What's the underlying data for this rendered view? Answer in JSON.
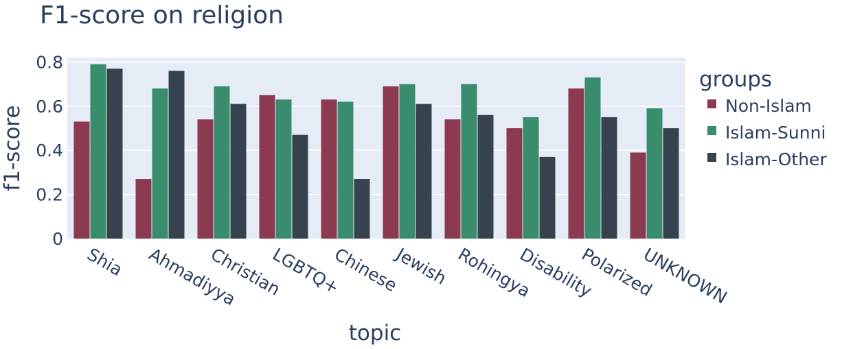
{
  "chart_data": {
    "type": "bar",
    "title": "F1-score on religion",
    "xlabel": "topic",
    "ylabel": "f1-score",
    "ylim": [
      0,
      0.82
    ],
    "yticks": [
      0,
      0.2,
      0.4,
      0.6,
      0.8
    ],
    "ytick_labels": [
      "0",
      "0.2",
      "0.4",
      "0.6",
      "0.8"
    ],
    "grid": true,
    "legend_title": "groups",
    "legend_position": "right",
    "categories": [
      "Shia",
      "Ahmadiyya",
      "Christian",
      "LGBTQ+",
      "Chinese",
      "Jewish",
      "Rohingya",
      "Disability",
      "Polarized",
      "UNKNOWN"
    ],
    "series": [
      {
        "name": "Non-Islam",
        "color": "#8b3a4f",
        "values": [
          0.53,
          0.27,
          0.54,
          0.65,
          0.63,
          0.69,
          0.54,
          0.5,
          0.68,
          0.39
        ]
      },
      {
        "name": "Islam-Sunni",
        "color": "#398c6c",
        "values": [
          0.79,
          0.68,
          0.69,
          0.63,
          0.62,
          0.7,
          0.7,
          0.55,
          0.73,
          0.59
        ]
      },
      {
        "name": "Islam-Other",
        "color": "#36434f",
        "values": [
          0.77,
          0.76,
          0.61,
          0.47,
          0.27,
          0.61,
          0.56,
          0.37,
          0.55,
          0.5
        ]
      }
    ],
    "plot_background": "#e5ecf6"
  }
}
